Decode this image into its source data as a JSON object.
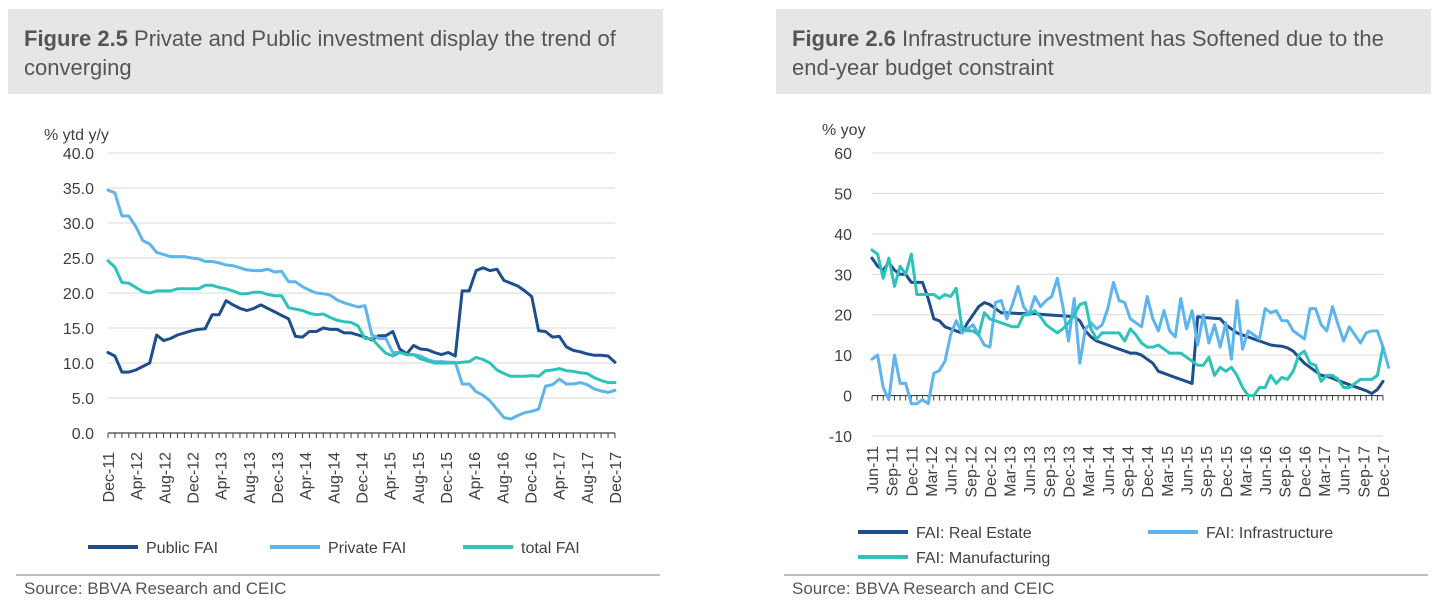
{
  "charts": [
    {
      "title_bold": "Figure 2.5",
      "title_rest": " Private and Public investment display the trend of converging",
      "source": "Source: BBVA Research and CEIC",
      "chart_data": {
        "type": "line",
        "ylabel": "% ytd y/y",
        "ylim": [
          0,
          40
        ],
        "yticks": [
          "0.0",
          "5.0",
          "10.0",
          "15.0",
          "20.0",
          "25.0",
          "30.0",
          "35.0",
          "40.0"
        ],
        "x_start": "Dec-11",
        "x_end": "Dec-17",
        "x_tick_labels": [
          "Dec-11",
          "Apr-12",
          "Aug-12",
          "Dec-12",
          "Apr-13",
          "Aug-13",
          "Dec-13",
          "Apr-14",
          "Aug-14",
          "Dec-14",
          "Apr-15",
          "Aug-15",
          "Dec-15",
          "Apr-16",
          "Aug-16",
          "Dec-16",
          "Apr-17",
          "Aug-17",
          "Dec-17"
        ],
        "legend_position": "bottom",
        "grid": true,
        "series": [
          {
            "name": "Public FAI",
            "color": "#1f4e8c",
            "values": [
              11.5,
              11.0,
              8.7,
              8.7,
              9.0,
              9.5,
              10.0,
              14.0,
              13.2,
              13.5,
              14.0,
              14.3,
              14.6,
              14.8,
              14.9,
              16.9,
              16.9,
              18.9,
              18.3,
              17.8,
              17.5,
              17.8,
              18.3,
              17.8,
              17.3,
              16.8,
              16.3,
              13.8,
              13.7,
              14.5,
              14.5,
              15.0,
              14.8,
              14.8,
              14.3,
              14.3,
              14.0,
              13.7,
              13.3,
              13.9,
              13.9,
              14.5,
              12.0,
              11.3,
              12.5,
              12.0,
              11.9,
              11.5,
              11.2,
              11.5,
              11.0,
              20.3,
              20.3,
              23.2,
              23.6,
              23.2,
              23.4,
              21.8,
              21.4,
              21.0,
              20.3,
              19.5,
              14.6,
              14.5,
              13.7,
              13.8,
              12.3,
              11.8,
              11.6,
              11.3,
              11.1,
              11.1,
              11.0,
              10.1
            ]
          },
          {
            "name": "Private FAI",
            "color": "#5eb4ec",
            "values": [
              34.7,
              34.3,
              31.0,
              31.0,
              29.5,
              27.5,
              27.0,
              25.8,
              25.5,
              25.2,
              25.2,
              25.2,
              25.0,
              24.9,
              24.5,
              24.5,
              24.3,
              24.0,
              23.9,
              23.6,
              23.3,
              23.2,
              23.2,
              23.4,
              23.0,
              23.1,
              21.6,
              21.6,
              20.9,
              20.4,
              20.0,
              19.9,
              19.7,
              19.0,
              18.6,
              18.3,
              18.0,
              18.2,
              14.0,
              13.5,
              13.5,
              11.5,
              11.5,
              11.2,
              11.2,
              11.0,
              10.5,
              10.2,
              10.2,
              10.1,
              10.1,
              7.0,
              7.0,
              5.9,
              5.4,
              4.6,
              3.4,
              2.2,
              2.0,
              2.5,
              2.9,
              3.1,
              3.4,
              6.7,
              6.9,
              7.7,
              7.0,
              7.0,
              7.2,
              6.9,
              6.3,
              6.0,
              5.8,
              6.1
            ]
          },
          {
            "name": "total FAI",
            "color": "#2ec2b8",
            "values": [
              24.6,
              23.7,
              21.5,
              21.4,
              20.8,
              20.2,
              20.0,
              20.3,
              20.3,
              20.3,
              20.6,
              20.6,
              20.6,
              20.6,
              21.1,
              21.1,
              20.8,
              20.6,
              20.3,
              19.9,
              19.9,
              20.1,
              20.1,
              19.8,
              19.6,
              19.6,
              17.9,
              17.7,
              17.5,
              17.1,
              16.9,
              17.0,
              16.5,
              16.1,
              15.9,
              15.8,
              15.3,
              13.5,
              13.5,
              12.4,
              11.4,
              11.0,
              11.5,
              11.2,
              11.2,
              10.6,
              10.3,
              10.0,
              10.0,
              10.0,
              10.0,
              10.1,
              10.2,
              10.8,
              10.5,
              10.0,
              9.0,
              8.5,
              8.1,
              8.1,
              8.1,
              8.2,
              8.1,
              8.9,
              9.0,
              9.2,
              8.9,
              8.8,
              8.6,
              8.5,
              7.9,
              7.5,
              7.2,
              7.2
            ]
          }
        ]
      }
    },
    {
      "title_bold": "Figure 2.6",
      "title_rest": " Infrastructure investment has Softened due to the end-year budget constraint",
      "source": "Source: BBVA Research and CEIC",
      "chart_data": {
        "type": "line",
        "ylabel": "% yoy",
        "ylim": [
          -10,
          60
        ],
        "yticks": [
          "-10",
          "0",
          "10",
          "20",
          "30",
          "40",
          "50",
          "60"
        ],
        "x_start": "Jun-11",
        "x_end": "Dec-17",
        "x_tick_labels": [
          "Jun-11",
          "Sep-11",
          "Dec-11",
          "Mar-12",
          "Jun-12",
          "Sep-12",
          "Dec-12",
          "Mar-13",
          "Jun-13",
          "Sep-13",
          "Dec-13",
          "Mar-14",
          "Jun-14",
          "Sep-14",
          "Dec-14",
          "Mar-15",
          "Jun-15",
          "Sep-15",
          "Dec-15",
          "Mar-16",
          "Jun-16",
          "Sep-16",
          "Dec-16",
          "Mar-17",
          "Jun-17",
          "Sep-17",
          "Dec-17"
        ],
        "legend_position": "bottom",
        "grid": true,
        "series": [
          {
            "name": "FAI: Real Estate",
            "color": "#1f4e8c",
            "values": [
              34,
              32,
              31,
              33,
              31,
              30,
              30,
              28,
              28,
              28,
              24,
              19,
              18.5,
              17,
              16.5,
              16,
              15.5,
              18,
              20,
              22,
              23,
              22.5,
              21.5,
              20.5,
              20.5,
              20.4,
              20.3,
              20.3,
              20.2,
              20.3,
              20.1,
              20.0,
              19.9,
              19.8,
              19.7,
              19.6,
              19.5,
              18.5,
              16,
              14.5,
              13.5,
              13,
              12.5,
              12,
              11.5,
              11.0,
              10.5,
              10.5,
              10.0,
              9.0,
              8.0,
              6.0,
              5.5,
              5.0,
              4.5,
              4.0,
              3.5,
              3.0,
              19.5,
              19.3,
              19.2,
              19.1,
              19.0,
              17.5,
              16.5,
              15.5,
              15.0,
              14.5,
              14.0,
              13.5,
              13.0,
              12.5,
              12.3,
              12.2,
              11.8,
              11.0,
              9.5,
              8.0,
              7.0,
              6.0,
              5.0,
              4.8,
              4.3,
              3.7,
              3.2,
              2.7,
              2.2,
              1.7,
              1.2,
              0.5,
              1.5,
              3.5
            ]
          },
          {
            "name": "FAI: Infrastructure",
            "color": "#5eb4ec",
            "values": [
              9,
              10,
              2,
              -1,
              10,
              3,
              3,
              -2,
              -2,
              -1,
              -2,
              5.5,
              6.2,
              8.5,
              15,
              18.5,
              15.5,
              16.5,
              17.5,
              15,
              12.5,
              12,
              23,
              23.5,
              19,
              22.5,
              27,
              22,
              20,
              24.5,
              22,
              23.5,
              24.5,
              29,
              22,
              13.5,
              24,
              8,
              16.5,
              18,
              16.5,
              17.5,
              21.5,
              28,
              23.5,
              23,
              19,
              18,
              17,
              24.5,
              19,
              16,
              21,
              16,
              14.5,
              24,
              16.5,
              21,
              12.5,
              20,
              13,
              17.5,
              12,
              18,
              9,
              23.5,
              11.5,
              16,
              15,
              14,
              21.5,
              20.5,
              21,
              18.5,
              18.5,
              16,
              15,
              14,
              21.5,
              21.5,
              17.5,
              16,
              22,
              17.5,
              13.5,
              17,
              15,
              13,
              15.5,
              16,
              16,
              12,
              7
            ]
          },
          {
            "name": "FAI: Manufacturing",
            "color": "#2ec2b8",
            "values": [
              36,
              35,
              29,
              34,
              27,
              32,
              30,
              35,
              25,
              25,
              25,
              25,
              24,
              25,
              24.5,
              26.5,
              17,
              16,
              16,
              15,
              20.5,
              19,
              18.5,
              18,
              17.5,
              17,
              17,
              20,
              20,
              21,
              19.5,
              17.5,
              16.5,
              15.5,
              16.5,
              18,
              20,
              22.5,
              23,
              16.5,
              14,
              15.5,
              15.5,
              15.5,
              15.5,
              13.5,
              16.5,
              15,
              13,
              12,
              12,
              12.5,
              11.5,
              10.5,
              10.5,
              10.5,
              9.5,
              8.5,
              7.5,
              7.5,
              9.5,
              5,
              7,
              6,
              7,
              5,
              2,
              0,
              0,
              2,
              2,
              5,
              3,
              4.5,
              4,
              6,
              10,
              11,
              8,
              7.5,
              3.5,
              5,
              5,
              4,
              2,
              2,
              3,
              4,
              4,
              4,
              5,
              12
            ]
          }
        ],
        "legend_layout": [
          [
            "FAI: Real Estate",
            "FAI: Infrastructure"
          ],
          [
            "FAI: Manufacturing"
          ]
        ]
      }
    }
  ]
}
